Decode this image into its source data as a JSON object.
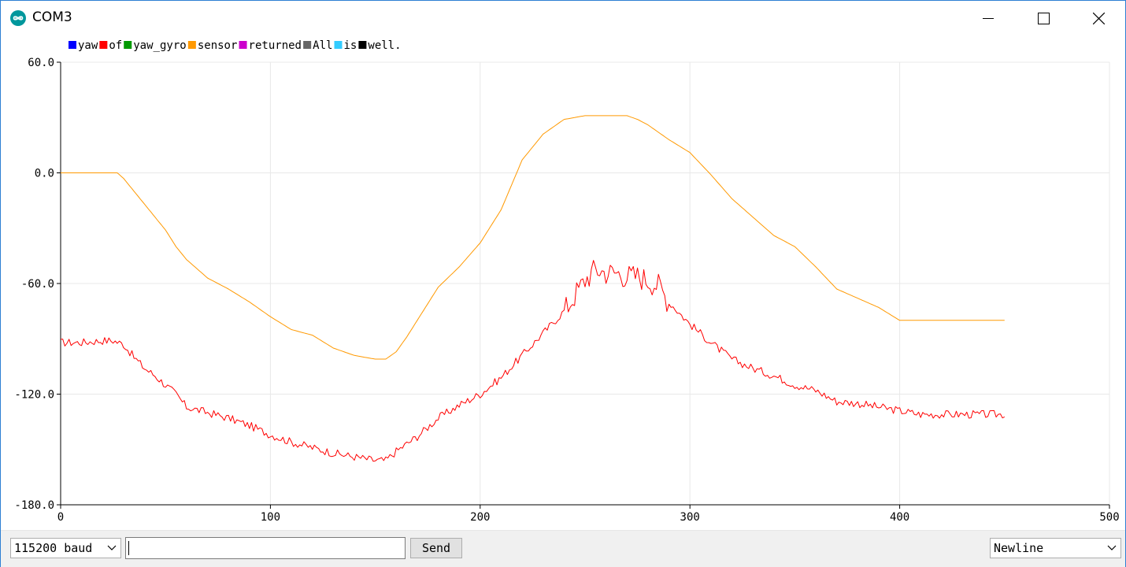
{
  "window": {
    "title": "COM3",
    "app_icon": "arduino-infinity-icon",
    "controls": [
      "minimize-icon",
      "maximize-icon",
      "close-icon"
    ]
  },
  "chart_data": {
    "type": "line",
    "title": "",
    "xlabel": "",
    "ylabel": "",
    "xlim": [
      0,
      500
    ],
    "ylim": [
      -180,
      60
    ],
    "x_ticks": [
      "0",
      "100",
      "200",
      "300",
      "400",
      "500"
    ],
    "y_ticks": [
      "60.0",
      "0.0",
      "-60.0",
      "-120.0",
      "-180.0"
    ],
    "grid": true,
    "legend_position": "top-left",
    "legend": [
      {
        "label": "yaw",
        "color": "#0000ff"
      },
      {
        "label": "of",
        "color": "#ff0000"
      },
      {
        "label": "yaw_gyro",
        "color": "#009900"
      },
      {
        "label": "sensor",
        "color": "#ff9900"
      },
      {
        "label": "returned",
        "color": "#cc00cc"
      },
      {
        "label": "All",
        "color": "#666666"
      },
      {
        "label": "is",
        "color": "#33ccff"
      },
      {
        "label": "well.",
        "color": "#000000"
      }
    ],
    "series": [
      {
        "name": "of",
        "color": "#ff0000",
        "x": [
          0,
          10,
          20,
          25,
          30,
          35,
          40,
          45,
          50,
          55,
          60,
          70,
          80,
          90,
          100,
          110,
          120,
          130,
          140,
          150,
          155,
          160,
          170,
          180,
          190,
          200,
          210,
          220,
          230,
          240,
          250,
          255,
          260,
          265,
          270,
          275,
          280,
          285,
          290,
          300,
          310,
          320,
          330,
          340,
          350,
          360,
          370,
          380,
          390,
          400,
          410,
          420,
          430,
          440,
          450
        ],
        "y": [
          -92,
          -92,
          -91,
          -91,
          -93,
          -100,
          -106,
          -110,
          -115,
          -120,
          -127,
          -130,
          -133,
          -137,
          -142,
          -146,
          -149,
          -152,
          -154,
          -156,
          -156,
          -151,
          -143,
          -133,
          -126,
          -120,
          -111,
          -99,
          -87,
          -75,
          -58,
          -52,
          -54,
          -54,
          -56,
          -56,
          -58,
          -61,
          -70,
          -82,
          -92,
          -101,
          -106,
          -110,
          -115,
          -118,
          -124,
          -125,
          -127,
          -129,
          -131,
          -131,
          -131,
          -131,
          -131
        ]
      },
      {
        "name": "sensor",
        "color": "#ff9900",
        "x": [
          0,
          10,
          20,
          27,
          30,
          35,
          40,
          45,
          50,
          55,
          60,
          65,
          70,
          80,
          90,
          100,
          110,
          120,
          130,
          140,
          150,
          155,
          160,
          165,
          170,
          180,
          190,
          200,
          210,
          220,
          230,
          240,
          250,
          260,
          270,
          275,
          280,
          290,
          300,
          310,
          320,
          330,
          340,
          350,
          360,
          370,
          380,
          390,
          400,
          410,
          420,
          430,
          440,
          450
        ],
        "y": [
          0,
          0,
          0,
          0,
          -3,
          -10,
          -17,
          -24,
          -31,
          -40,
          -47,
          -52,
          -57,
          -63,
          -70,
          -78,
          -85,
          -88,
          -95,
          -99,
          -101,
          -101,
          -97,
          -89,
          -80,
          -62,
          -51,
          -38,
          -20,
          7,
          21,
          29,
          31,
          31,
          31,
          29,
          26,
          18,
          11,
          -1,
          -14,
          -24,
          -34,
          -40,
          -51,
          -63,
          -68,
          -73,
          -80,
          -80,
          -80,
          -80,
          -80,
          -80
        ]
      }
    ]
  },
  "bottom": {
    "baud": "115200 baud",
    "input_value": "",
    "send_label": "Send",
    "line_ending": "Newline"
  }
}
